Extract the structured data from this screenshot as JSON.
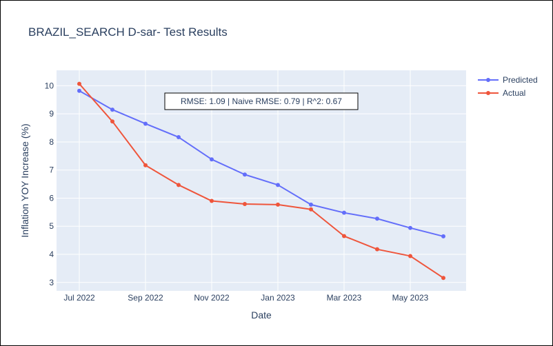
{
  "chart_data": {
    "type": "line",
    "title": "BRAZIL_SEARCH D-sar- Test Results",
    "xlabel": "Date",
    "ylabel": "Inflation YOY Increase (%)",
    "x": [
      "2022-07",
      "2022-08",
      "2022-09",
      "2022-10",
      "2022-11",
      "2022-12",
      "2023-01",
      "2023-02",
      "2023-03",
      "2023-04",
      "2023-05",
      "2023-06"
    ],
    "x_ticks": [
      {
        "value": "2022-07",
        "label": "Jul 2022"
      },
      {
        "value": "2022-09",
        "label": "Sep 2022"
      },
      {
        "value": "2022-11",
        "label": "Nov 2022"
      },
      {
        "value": "2023-01",
        "label": "Jan 2023"
      },
      {
        "value": "2023-03",
        "label": "Mar 2023"
      },
      {
        "value": "2023-05",
        "label": "May 2023"
      }
    ],
    "y_ticks": [
      3,
      4,
      5,
      6,
      7,
      8,
      9,
      10
    ],
    "ylim": [
      2.7,
      10.55
    ],
    "series": [
      {
        "name": "Predicted",
        "color": "#636efa",
        "values": [
          9.82,
          9.15,
          8.65,
          8.17,
          7.38,
          6.84,
          6.47,
          5.77,
          5.48,
          5.27,
          4.94,
          4.64
        ]
      },
      {
        "name": "Actual",
        "color": "#ef553b",
        "values": [
          10.07,
          8.73,
          7.17,
          6.47,
          5.9,
          5.79,
          5.77,
          5.6,
          4.65,
          4.18,
          3.94,
          3.16
        ]
      }
    ],
    "annotation": "RMSE: 1.09 | Naive RMSE: 0.79 | R^2: 0.67",
    "grid": true,
    "legend_position": "top-right",
    "plot_background": "#e5ecf6"
  }
}
